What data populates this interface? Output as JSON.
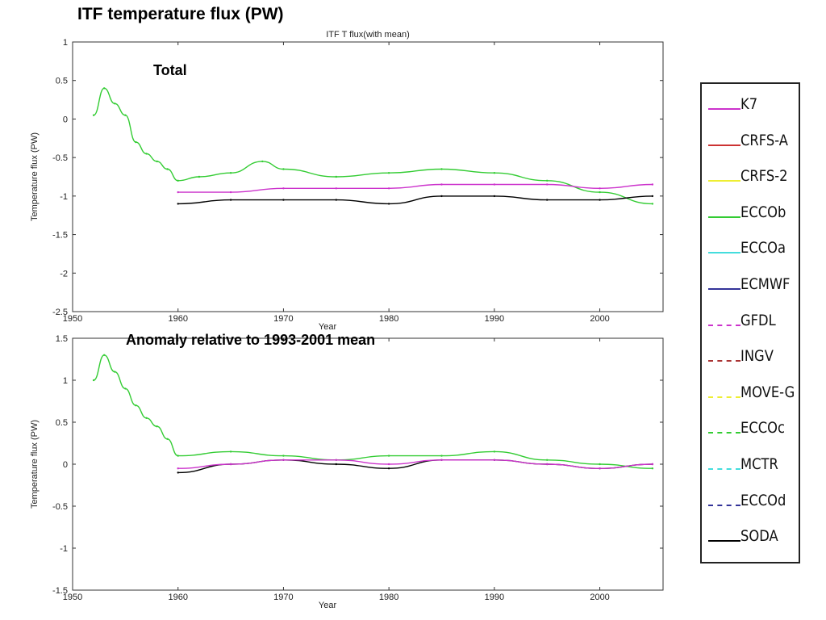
{
  "slide": {
    "title": "ITF temperature flux (PW)"
  },
  "chart_data": [
    {
      "type": "line",
      "title": "ITF T flux(with mean)",
      "annotation": "Total",
      "xlabel": "Year",
      "ylabel": "Temperature flux (PW)",
      "xlim": [
        1950,
        2006
      ],
      "ylim": [
        -2.5,
        1
      ],
      "xticks": [
        "1950",
        "1960",
        "1970",
        "1980",
        "1990",
        "2000"
      ],
      "yticks": [
        "1",
        "0.5",
        "0",
        "-0.5",
        "-1",
        "-1.5",
        "-2",
        "-2.5"
      ],
      "series": [
        {
          "name": "ECCOb",
          "color": "#33cc33",
          "style": "solid",
          "x": [
            1952,
            1953,
            1954,
            1955,
            1956,
            1957,
            1958,
            1959,
            1960,
            1962,
            1965,
            1968,
            1970,
            1975,
            1980,
            1985,
            1990,
            1995,
            2000,
            2005
          ],
          "y": [
            0.05,
            0.4,
            0.2,
            0.05,
            -0.3,
            -0.45,
            -0.55,
            -0.65,
            -0.8,
            -0.75,
            -0.7,
            -0.55,
            -0.65,
            -0.75,
            -0.7,
            -0.65,
            -0.7,
            -0.8,
            -0.95,
            -1.1
          ]
        },
        {
          "name": "SODA",
          "color": "#000000",
          "style": "solid",
          "x": [
            1960,
            1965,
            1970,
            1975,
            1980,
            1985,
            1990,
            1995,
            2000,
            2005
          ],
          "y": [
            -1.1,
            -1.05,
            -1.05,
            -1.05,
            -1.1,
            -1.0,
            -1.0,
            -1.05,
            -1.05,
            -1.0
          ]
        },
        {
          "name": "K7",
          "color": "#cc33cc",
          "style": "solid",
          "x": [
            1960,
            1965,
            1970,
            1975,
            1980,
            1985,
            1990,
            1995,
            2000,
            2005
          ],
          "y": [
            -0.95,
            -0.95,
            -0.9,
            -0.9,
            -0.9,
            -0.85,
            -0.85,
            -0.85,
            -0.9,
            -0.85
          ]
        }
      ]
    },
    {
      "type": "line",
      "annotation": "Anomaly relative to 1993-2001 mean",
      "xlabel": "Year",
      "ylabel": "Temperature flux (PW)",
      "xlim": [
        1950,
        2006
      ],
      "ylim": [
        -1.5,
        1.5
      ],
      "xticks": [
        "1950",
        "1960",
        "1970",
        "1980",
        "1990",
        "2000"
      ],
      "yticks": [
        "1.5",
        "1",
        "0.5",
        "0",
        "-0.5",
        "-1",
        "-1.5"
      ],
      "series": [
        {
          "name": "ECCOb",
          "color": "#33cc33",
          "style": "solid",
          "x": [
            1952,
            1953,
            1954,
            1955,
            1956,
            1957,
            1958,
            1959,
            1960,
            1965,
            1970,
            1975,
            1980,
            1985,
            1990,
            1995,
            2000,
            2005
          ],
          "y": [
            1.0,
            1.3,
            1.1,
            0.9,
            0.7,
            0.55,
            0.45,
            0.3,
            0.1,
            0.15,
            0.1,
            0.05,
            0.1,
            0.1,
            0.15,
            0.05,
            0.0,
            -0.05
          ]
        },
        {
          "name": "SODA",
          "color": "#000000",
          "style": "solid",
          "x": [
            1960,
            1965,
            1970,
            1975,
            1980,
            1985,
            1990,
            1995,
            2000,
            2005
          ],
          "y": [
            -0.1,
            0.0,
            0.05,
            0.0,
            -0.05,
            0.05,
            0.05,
            0.0,
            -0.05,
            0.0
          ]
        },
        {
          "name": "K7",
          "color": "#cc33cc",
          "style": "solid",
          "x": [
            1960,
            1965,
            1970,
            1975,
            1980,
            1985,
            1990,
            1995,
            2000,
            2005
          ],
          "y": [
            -0.05,
            0.0,
            0.05,
            0.05,
            0.0,
            0.05,
            0.05,
            0.0,
            -0.05,
            0.0
          ]
        }
      ]
    }
  ],
  "legend": {
    "items": [
      {
        "label": "K7",
        "color": "#cc33cc",
        "style": "solid"
      },
      {
        "label": "CRFS-A",
        "color": "#cc3333",
        "style": "solid"
      },
      {
        "label": "CRFS-2",
        "color": "#eeee33",
        "style": "solid"
      },
      {
        "label": "ECCOb",
        "color": "#33cc33",
        "style": "solid"
      },
      {
        "label": "ECCOa",
        "color": "#44dddd",
        "style": "solid"
      },
      {
        "label": "ECMWF",
        "color": "#333399",
        "style": "solid"
      },
      {
        "label": "GFDL",
        "color": "#cc33cc",
        "style": "dashed"
      },
      {
        "label": "INGV",
        "color": "#aa3333",
        "style": "dashed"
      },
      {
        "label": "MOVE-G",
        "color": "#eeee33",
        "style": "dashed"
      },
      {
        "label": "ECCOc",
        "color": "#33cc33",
        "style": "dashed"
      },
      {
        "label": "MCTR",
        "color": "#44dddd",
        "style": "dashed"
      },
      {
        "label": "ECCOd",
        "color": "#333399",
        "style": "dashed"
      },
      {
        "label": "SODA",
        "color": "#000000",
        "style": "solid"
      }
    ]
  }
}
